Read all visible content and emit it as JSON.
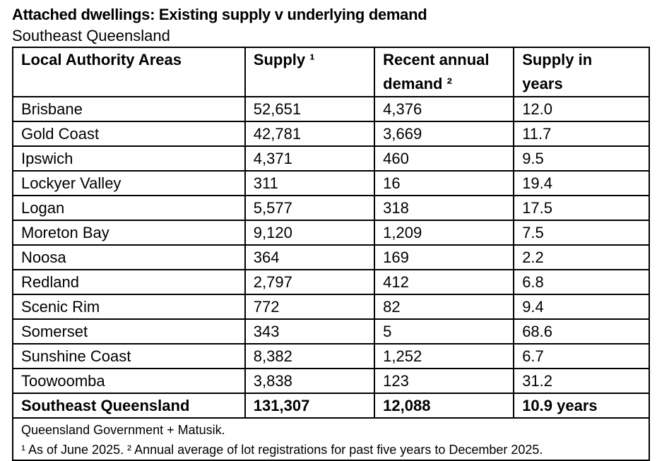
{
  "title": "Attached dwellings: Existing supply v underlying demand",
  "subtitle": "Southeast Queensland",
  "table": {
    "headers": [
      "Local Authority Areas",
      "Supply ¹",
      "Recent annual demand ²",
      "Supply in years"
    ],
    "rows": [
      [
        "Brisbane",
        "52,651",
        "4,376",
        "12.0"
      ],
      [
        "Gold Coast",
        "42,781",
        "3,669",
        "11.7"
      ],
      [
        "Ipswich",
        "4,371",
        "460",
        "9.5"
      ],
      [
        "Lockyer Valley",
        "311",
        "16",
        "19.4"
      ],
      [
        "Logan",
        "5,577",
        "318",
        "17.5"
      ],
      [
        "Moreton Bay",
        "9,120",
        "1,209",
        "7.5"
      ],
      [
        "Noosa",
        "364",
        "169",
        "2.2"
      ],
      [
        "Redland",
        "2,797",
        "412",
        "6.8"
      ],
      [
        "Scenic Rim",
        "772",
        "82",
        "9.4"
      ],
      [
        "Somerset",
        "343",
        "5",
        "68.6"
      ],
      [
        "Sunshine Coast",
        "8,382",
        "1,252",
        "6.7"
      ],
      [
        "Toowoomba",
        "3,838",
        "123",
        "31.2"
      ]
    ],
    "total": [
      "Southeast Queensland",
      "131,307",
      "12,088",
      "10.9 years"
    ]
  },
  "notes": {
    "source": "Queensland Government + Matusik.",
    "footnotes": "¹ As of June 2025.  ² Annual average of lot registrations for past five years to December 2025."
  }
}
